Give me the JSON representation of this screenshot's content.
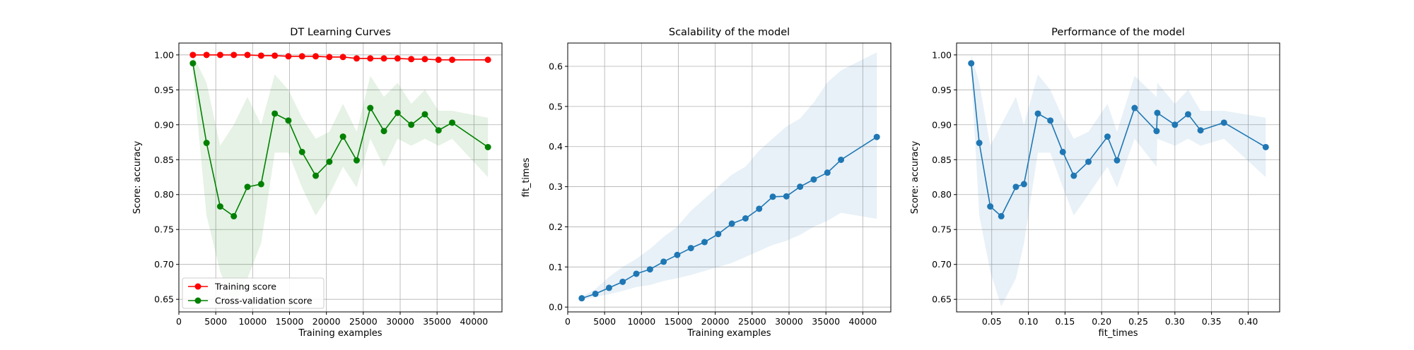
{
  "colors": {
    "train": "#ff0000",
    "cv": "#008000",
    "cv_band": "#008000",
    "line": "#1f77b4",
    "band": "#1f77b4",
    "grid": "#b0b0b0"
  },
  "chart_data": [
    {
      "type": "line",
      "title": "DT Learning Curves",
      "xlabel": "Training examples",
      "ylabel": "Score: accuracy",
      "xlim": [
        0,
        43800
      ],
      "ylim": [
        0.632,
        1.017
      ],
      "xticks": [
        0,
        5000,
        10000,
        15000,
        20000,
        25000,
        30000,
        35000,
        40000
      ],
      "xtick_labels": [
        "0",
        "5000",
        "10000",
        "15000",
        "20000",
        "25000",
        "30000",
        "35000",
        "40000"
      ],
      "yticks": [
        0.65,
        0.7,
        0.75,
        0.8,
        0.85,
        0.9,
        0.95,
        1.0
      ],
      "ytick_labels": [
        "0.65",
        "0.70",
        "0.75",
        "0.80",
        "0.85",
        "0.90",
        "0.95",
        "1.00"
      ],
      "grid": true,
      "legend": "lower-left",
      "x": [
        1900,
        3750,
        5600,
        7450,
        9300,
        11150,
        13000,
        14850,
        16700,
        18550,
        20400,
        22250,
        24100,
        25950,
        27800,
        29650,
        31500,
        33350,
        35200,
        37050,
        41900
      ],
      "series": [
        {
          "name": "Training score",
          "color": "#ff0000",
          "values": [
            1.0,
            1.0,
            1.0,
            1.0,
            1.0,
            0.999,
            0.999,
            0.998,
            0.998,
            0.998,
            0.997,
            0.997,
            0.995,
            0.995,
            0.995,
            0.995,
            0.994,
            0.994,
            0.993,
            0.993,
            0.993
          ],
          "lower": [
            0.999,
            0.999,
            0.999,
            0.999,
            0.999,
            0.998,
            0.998,
            0.997,
            0.997,
            0.997,
            0.996,
            0.996,
            0.994,
            0.994,
            0.994,
            0.994,
            0.993,
            0.993,
            0.992,
            0.992,
            0.992
          ],
          "upper": [
            1.0,
            1.0,
            1.0,
            1.0,
            1.0,
            1.0,
            1.0,
            0.999,
            0.999,
            0.999,
            0.998,
            0.998,
            0.996,
            0.996,
            0.996,
            0.996,
            0.995,
            0.995,
            0.994,
            0.994,
            0.994
          ]
        },
        {
          "name": "Cross-validation score",
          "color": "#008000",
          "values": [
            0.988,
            0.874,
            0.783,
            0.769,
            0.811,
            0.815,
            0.916,
            0.906,
            0.861,
            0.827,
            0.847,
            0.883,
            0.849,
            0.924,
            0.891,
            0.917,
            0.9,
            0.915,
            0.892,
            0.903,
            0.868
          ],
          "lower": [
            0.975,
            0.77,
            0.69,
            0.64,
            0.68,
            0.73,
            0.86,
            0.86,
            0.81,
            0.77,
            0.8,
            0.84,
            0.81,
            0.88,
            0.84,
            0.88,
            0.87,
            0.88,
            0.87,
            0.88,
            0.825
          ],
          "upper": [
            1.0,
            0.96,
            0.87,
            0.9,
            0.94,
            0.9,
            0.972,
            0.95,
            0.91,
            0.88,
            0.89,
            0.93,
            0.89,
            0.97,
            0.94,
            0.96,
            0.93,
            0.95,
            0.92,
            0.92,
            0.91
          ]
        }
      ]
    },
    {
      "type": "line",
      "title": "Scalability of the model",
      "xlabel": "Training examples",
      "ylabel": "fit_times",
      "xlim": [
        0,
        43800
      ],
      "ylim": [
        -0.012,
        0.658
      ],
      "xticks": [
        0,
        5000,
        10000,
        15000,
        20000,
        25000,
        30000,
        35000,
        40000
      ],
      "xtick_labels": [
        "0",
        "5000",
        "10000",
        "15000",
        "20000",
        "25000",
        "30000",
        "35000",
        "40000"
      ],
      "yticks": [
        0.0,
        0.1,
        0.2,
        0.3,
        0.4,
        0.5,
        0.6
      ],
      "ytick_labels": [
        "0.0",
        "0.1",
        "0.2",
        "0.3",
        "0.4",
        "0.5",
        "0.6"
      ],
      "grid": true,
      "x": [
        1900,
        3750,
        5600,
        7450,
        9300,
        11150,
        13000,
        14850,
        16700,
        18550,
        20400,
        22250,
        24100,
        25950,
        27800,
        29650,
        31500,
        33350,
        35200,
        37050,
        41900
      ],
      "series": [
        {
          "color": "#1f77b4",
          "values": [
            0.022,
            0.033,
            0.048,
            0.063,
            0.083,
            0.094,
            0.113,
            0.13,
            0.147,
            0.162,
            0.182,
            0.208,
            0.221,
            0.245,
            0.275,
            0.276,
            0.3,
            0.318,
            0.335,
            0.367,
            0.424
          ],
          "lower": [
            0.018,
            0.025,
            0.032,
            0.04,
            0.05,
            0.055,
            0.065,
            0.072,
            0.08,
            0.09,
            0.1,
            0.11,
            0.125,
            0.14,
            0.155,
            0.165,
            0.18,
            0.2,
            0.215,
            0.235,
            0.22
          ],
          "upper": [
            0.026,
            0.045,
            0.075,
            0.1,
            0.12,
            0.145,
            0.175,
            0.2,
            0.24,
            0.27,
            0.3,
            0.33,
            0.35,
            0.39,
            0.42,
            0.45,
            0.47,
            0.51,
            0.56,
            0.59,
            0.635
          ]
        }
      ]
    },
    {
      "type": "line",
      "title": "Performance of the model",
      "xlabel": "fit_times",
      "ylabel": "Score: accuracy",
      "xlim": [
        0.002,
        0.443
      ],
      "ylim": [
        0.632,
        1.017
      ],
      "xticks": [
        0.05,
        0.1,
        0.15,
        0.2,
        0.25,
        0.3,
        0.35,
        0.4
      ],
      "xtick_labels": [
        "0.05",
        "0.10",
        "0.15",
        "0.20",
        "0.25",
        "0.30",
        "0.35",
        "0.40"
      ],
      "yticks": [
        0.65,
        0.7,
        0.75,
        0.8,
        0.85,
        0.9,
        0.95,
        1.0
      ],
      "ytick_labels": [
        "0.65",
        "0.70",
        "0.75",
        "0.80",
        "0.85",
        "0.90",
        "0.95",
        "1.00"
      ],
      "grid": true,
      "series": [
        {
          "color": "#1f77b4",
          "x": [
            0.022,
            0.033,
            0.048,
            0.063,
            0.083,
            0.094,
            0.113,
            0.13,
            0.147,
            0.162,
            0.182,
            0.208,
            0.221,
            0.245,
            0.275,
            0.276,
            0.3,
            0.318,
            0.335,
            0.367,
            0.424
          ],
          "values": [
            0.988,
            0.874,
            0.783,
            0.769,
            0.811,
            0.815,
            0.916,
            0.906,
            0.861,
            0.827,
            0.847,
            0.883,
            0.849,
            0.924,
            0.891,
            0.917,
            0.9,
            0.915,
            0.892,
            0.903,
            0.868
          ],
          "lower": [
            0.975,
            0.77,
            0.69,
            0.64,
            0.68,
            0.73,
            0.86,
            0.86,
            0.81,
            0.77,
            0.8,
            0.84,
            0.81,
            0.88,
            0.84,
            0.88,
            0.87,
            0.88,
            0.87,
            0.88,
            0.825
          ],
          "upper": [
            1.0,
            0.96,
            0.87,
            0.9,
            0.94,
            0.9,
            0.972,
            0.95,
            0.91,
            0.88,
            0.89,
            0.93,
            0.89,
            0.97,
            0.94,
            0.96,
            0.93,
            0.95,
            0.92,
            0.92,
            0.91
          ]
        }
      ]
    }
  ]
}
